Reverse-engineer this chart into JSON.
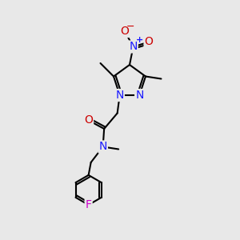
{
  "background_color": "#e8e8e8",
  "bond_color": "black",
  "bond_width": 1.5,
  "atom_colors": {
    "N": "#1a1aff",
    "O": "#cc0000",
    "F": "#cc00cc"
  },
  "font_size_atom": 10,
  "figsize": [
    3.0,
    3.0
  ],
  "dpi": 100
}
